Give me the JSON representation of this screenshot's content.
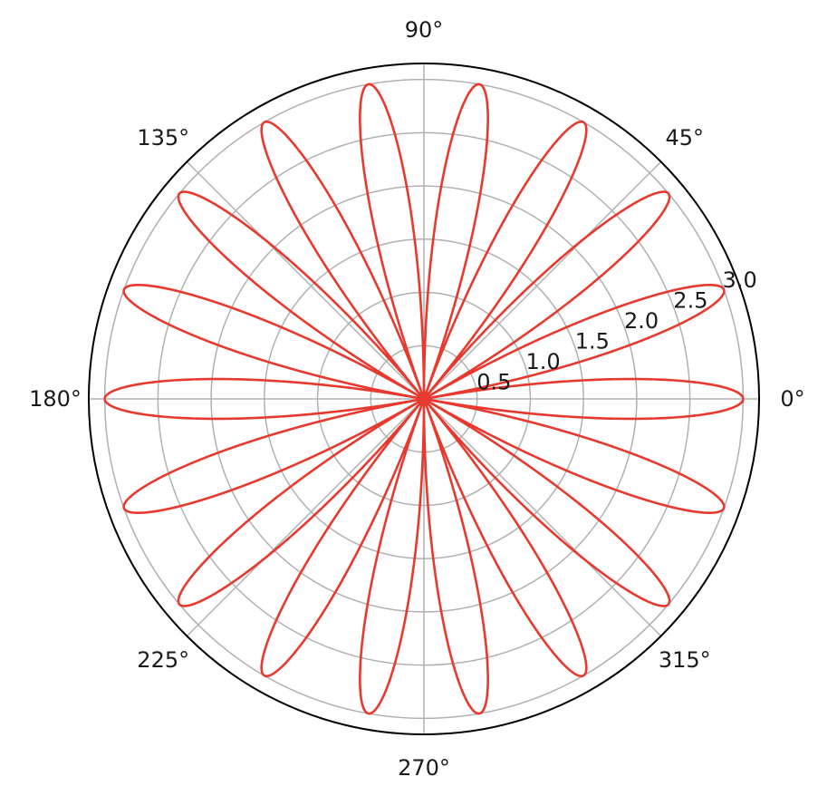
{
  "chart_data": {
    "type": "line",
    "projection": "polar",
    "title": "",
    "series": [
      {
        "equation": "r = 3·|cos(9θ)|",
        "amplitude": 3,
        "petal_frequency": 9,
        "petals": 18,
        "theta_range_deg": [
          0,
          360
        ],
        "color": "#e8392e"
      }
    ],
    "rlim": [
      0,
      3.15
    ],
    "r_ticks": [
      0.5,
      1.0,
      1.5,
      2.0,
      2.5,
      3.0
    ],
    "r_tick_labels": [
      "0.5",
      "1.0",
      "1.5",
      "2.0",
      "2.5",
      "3.0"
    ],
    "r_label_angle_deg": 22.5,
    "theta_ticks_deg": [
      0,
      45,
      90,
      135,
      180,
      225,
      270,
      315
    ],
    "theta_tick_labels": [
      "0°",
      "45°",
      "90°",
      "135°",
      "180°",
      "225°",
      "270°",
      "315°"
    ],
    "grid": true,
    "legend": "none"
  }
}
